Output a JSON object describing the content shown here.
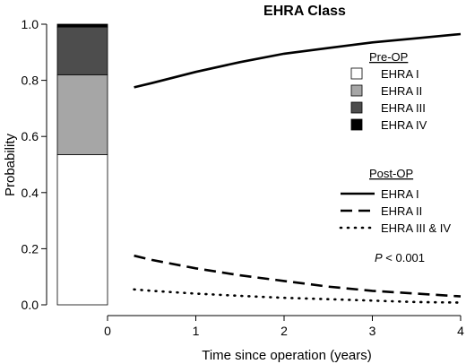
{
  "chart_data": {
    "type": "line",
    "title": "EHRA Class",
    "xlabel": "Time since operation (years)",
    "ylabel": "Probability",
    "xlim": [
      0,
      4
    ],
    "ylim": [
      0,
      1.0
    ],
    "x_ticks": [
      "0",
      "1",
      "2",
      "3",
      "4"
    ],
    "y_ticks": [
      "0.0",
      "0.2",
      "0.4",
      "0.6",
      "0.8",
      "1.0"
    ],
    "grid": false,
    "pre_op": {
      "legend_title": "Pre-OP",
      "type": "stacked-bar",
      "segments": [
        {
          "name": "EHRA I",
          "value": 0.535,
          "color": "#ffffff"
        },
        {
          "name": "EHRA II",
          "value": 0.285,
          "color": "#a6a6a6"
        },
        {
          "name": "EHRA III",
          "value": 0.17,
          "color": "#4d4d4d"
        },
        {
          "name": "EHRA IV",
          "value": 0.01,
          "color": "#000000"
        }
      ]
    },
    "post_op": {
      "legend_title": "Post-OP",
      "series": [
        {
          "name": "EHRA I",
          "style": "solid",
          "x": [
            0.3,
            0.5,
            1.0,
            1.5,
            2.0,
            2.5,
            3.0,
            3.5,
            4.0
          ],
          "values": [
            0.775,
            0.79,
            0.83,
            0.865,
            0.895,
            0.915,
            0.935,
            0.95,
            0.965
          ]
        },
        {
          "name": "EHRA II",
          "style": "dashed",
          "x": [
            0.3,
            0.5,
            1.0,
            1.5,
            2.0,
            2.5,
            3.0,
            3.5,
            4.0
          ],
          "values": [
            0.175,
            0.16,
            0.13,
            0.105,
            0.085,
            0.065,
            0.05,
            0.04,
            0.03
          ]
        },
        {
          "name": "EHRA III & IV",
          "style": "dotted",
          "x": [
            0.3,
            0.5,
            1.0,
            1.5,
            2.0,
            2.5,
            3.0,
            3.5,
            4.0
          ],
          "values": [
            0.055,
            0.05,
            0.04,
            0.032,
            0.025,
            0.02,
            0.015,
            0.01,
            0.008
          ]
        }
      ]
    },
    "annotation": {
      "p_symbol": "P",
      "p_rest": " < 0.001"
    }
  }
}
